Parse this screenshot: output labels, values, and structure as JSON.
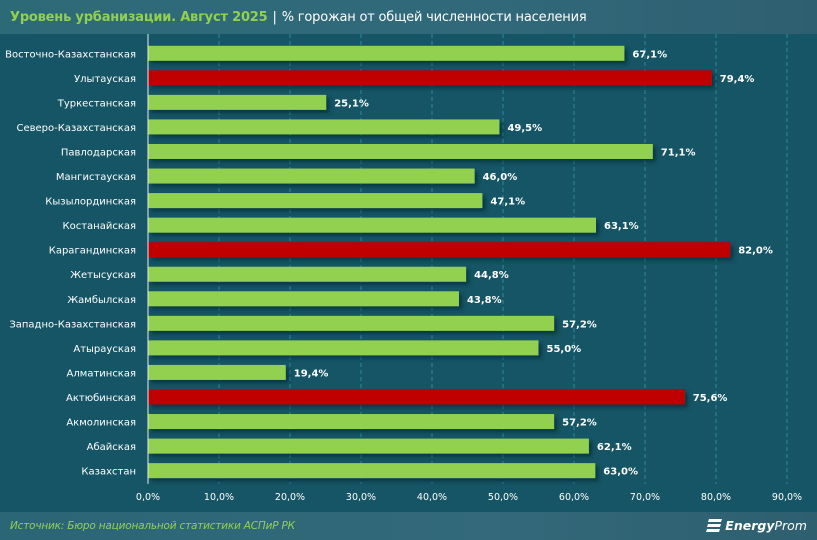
{
  "header": {
    "title_main": "Уровень урбанизации. Август 2025",
    "separator": "|",
    "title_sub": "% горожан от общей численности населения"
  },
  "footer": {
    "source": "Источник: Бюро национальной статистики АСПиР РК",
    "logo_part1": "Energy",
    "logo_part2": "Prom",
    "logo_icon": "energyprom-logo-icon"
  },
  "colors": {
    "background": "#155565",
    "normal_bar": "#92d050",
    "highlight_bar": "#c00000",
    "gridline": "#2a8aa0",
    "label_text": "#ffffff",
    "title_accent": "#92d050"
  },
  "chart_data": {
    "type": "bar",
    "orientation": "horizontal",
    "title": "Уровень урбанизации. Август 2025",
    "subtitle": "% горожан от общей численности населения",
    "xlabel": "",
    "ylabel": "",
    "xlim": [
      0,
      90
    ],
    "x_ticks": [
      "0,0%",
      "10,0%",
      "20,0%",
      "30,0%",
      "40,0%",
      "50,0%",
      "60,0%",
      "70,0%",
      "80,0%",
      "90,0%"
    ],
    "grid": true,
    "categories": [
      "Восточно-Казахстанская",
      "Улытауская",
      "Туркестанская",
      "Северо-Казахстанская",
      "Павлодарская",
      "Мангистауская",
      "Кызылординская",
      "Костанайская",
      "Карагандинская",
      "Жетысуская",
      "Жамбылская",
      "Западно-Казахстанская",
      "Атырауская",
      "Алматинская",
      "Актюбинская",
      "Акмолинская",
      "Абайская",
      "Казахстан"
    ],
    "values": [
      67.1,
      79.4,
      25.1,
      49.5,
      71.1,
      46.0,
      47.1,
      63.1,
      82.0,
      44.8,
      43.8,
      57.2,
      55.0,
      19.4,
      75.6,
      57.2,
      62.1,
      63.0
    ],
    "value_labels": [
      "67,1%",
      "79,4%",
      "25,1%",
      "49,5%",
      "71,1%",
      "46,0%",
      "47,1%",
      "63,1%",
      "82,0%",
      "44,8%",
      "43,8%",
      "57,2%",
      "55,0%",
      "19,4%",
      "75,6%",
      "57,2%",
      "62,1%",
      "63,0%"
    ],
    "highlighted": [
      false,
      true,
      false,
      false,
      false,
      false,
      false,
      false,
      true,
      false,
      false,
      false,
      false,
      false,
      true,
      false,
      false,
      false
    ],
    "legend": "none"
  }
}
